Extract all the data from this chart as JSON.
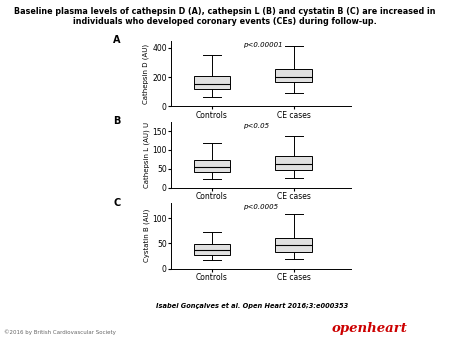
{
  "title": "Baseline plasma levels of cathepsin D (A), cathepsin L (B) and cystatin B (C) are increased in\nindividuals who developed coronary events (CEs) during follow-up.",
  "panels": [
    {
      "label": "A",
      "pvalue": "p<0.00001",
      "ylabel": "Cathepsin D (AU)",
      "ylim": [
        0,
        450
      ],
      "yticks": [
        0,
        200,
        400
      ],
      "controls": {
        "whislo": 65,
        "q1": 120,
        "med": 155,
        "q3": 205,
        "whishi": 350
      },
      "ce_cases": {
        "whislo": 95,
        "q1": 165,
        "med": 200,
        "q3": 258,
        "whishi": 410
      }
    },
    {
      "label": "B",
      "pvalue": "p<0.05",
      "ylabel": "Cathepsin L (AU) U",
      "ylim": [
        0,
        175
      ],
      "yticks": [
        0,
        50,
        100,
        150
      ],
      "controls": {
        "whislo": 22,
        "q1": 42,
        "med": 55,
        "q3": 72,
        "whishi": 118
      },
      "ce_cases": {
        "whislo": 25,
        "q1": 48,
        "med": 63,
        "q3": 85,
        "whishi": 138
      }
    },
    {
      "label": "C",
      "pvalue": "p<0.0005",
      "ylabel": "Cystatin B (AU)",
      "ylim": [
        0,
        130
      ],
      "yticks": [
        0,
        50,
        100
      ],
      "controls": {
        "whislo": 18,
        "q1": 28,
        "med": 36,
        "q3": 48,
        "whishi": 72
      },
      "ce_cases": {
        "whislo": 20,
        "q1": 33,
        "med": 46,
        "q3": 60,
        "whishi": 108
      }
    }
  ],
  "xtick_labels": [
    "Controls",
    "CE cases"
  ],
  "citation": "Isabel Gonçalves et al. Open Heart 2016;3:e000353",
  "copyright": "©2016 by British Cardiovascular Society",
  "openheart_color": "#cc0000",
  "box_fill": "#e0e0e0",
  "background_color": "#ffffff"
}
